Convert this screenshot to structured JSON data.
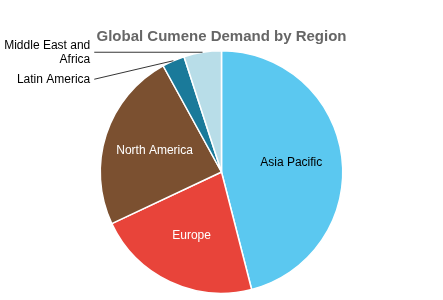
{
  "chart_data": {
    "type": "pie",
    "title": "Global Cumene Demand by Region",
    "categories": [
      "Asia Pacific",
      "Europe",
      "North America",
      "Latin America",
      "Middle East and\nAfrica"
    ],
    "values": [
      46,
      22,
      24,
      3,
      5
    ],
    "colors": [
      "#5BC8F0",
      "#E8443A",
      "#7B5030",
      "#1A7A9A",
      "#B8DDE8"
    ]
  }
}
